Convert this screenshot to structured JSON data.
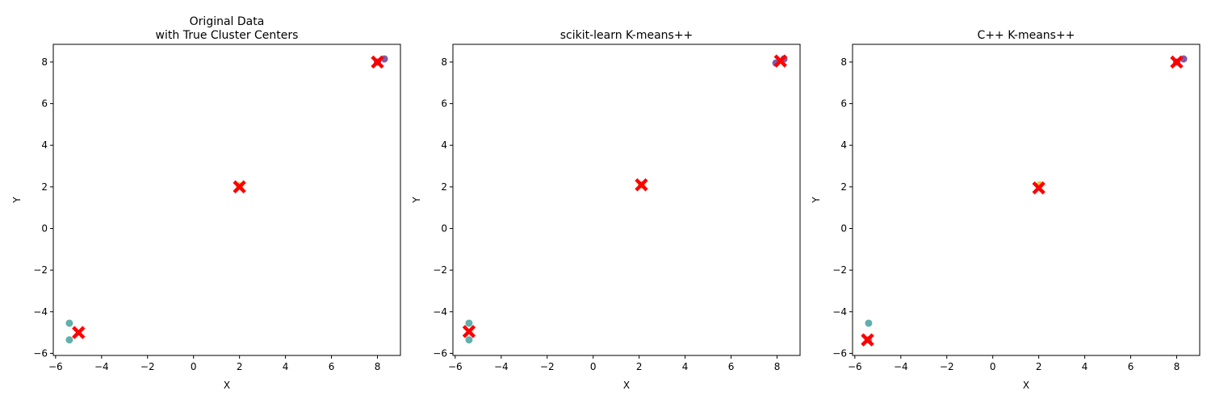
{
  "chart_data": [
    {
      "type": "scatter",
      "title_lines": [
        "Original Data",
        "with True Cluster Centers"
      ],
      "xlabel": "X",
      "ylabel": "Y",
      "xlim": [
        -6.1,
        9.0
      ],
      "ylim": [
        -6.1,
        8.85
      ],
      "xticks": [
        -6,
        -4,
        -2,
        0,
        2,
        4,
        6,
        8
      ],
      "yticks": [
        -6,
        -4,
        -2,
        0,
        2,
        4,
        6,
        8
      ],
      "xtick_labels": [
        "−6",
        "−4",
        "−2",
        "0",
        "2",
        "4",
        "6",
        "8"
      ],
      "ytick_labels": [
        "−6",
        "−4",
        "−2",
        "0",
        "2",
        "4",
        "6",
        "8"
      ],
      "points": [
        {
          "x": 8.3,
          "y": 8.15,
          "color": "#6a3d9a"
        },
        {
          "x": 8.0,
          "y": 8.0,
          "color": "#6a3d9a"
        },
        {
          "x": -5.4,
          "y": -4.55,
          "color": "#45a29e"
        },
        {
          "x": -5.4,
          "y": -5.35,
          "color": "#45a29e"
        },
        {
          "x": 2.0,
          "y": 2.05,
          "color": "#f0c000"
        }
      ],
      "centers": [
        {
          "x": 8.0,
          "y": 8.0
        },
        {
          "x": -5.0,
          "y": -5.0
        },
        {
          "x": 2.0,
          "y": 2.0
        }
      ],
      "grid": false
    },
    {
      "type": "scatter",
      "title_lines": [
        "scikit-learn K-means++"
      ],
      "xlabel": "X",
      "ylabel": "Y",
      "xlim": [
        -6.1,
        9.0
      ],
      "ylim": [
        -6.1,
        8.85
      ],
      "xticks": [
        -6,
        -4,
        -2,
        0,
        2,
        4,
        6,
        8
      ],
      "yticks": [
        -6,
        -4,
        -2,
        0,
        2,
        4,
        6,
        8
      ],
      "xtick_labels": [
        "−6",
        "−4",
        "−2",
        "0",
        "2",
        "4",
        "6",
        "8"
      ],
      "ytick_labels": [
        "−6",
        "−4",
        "−2",
        "0",
        "2",
        "4",
        "6",
        "8"
      ],
      "points": [
        {
          "x": 8.3,
          "y": 8.15,
          "color": "#6a3d9a"
        },
        {
          "x": 7.95,
          "y": 7.95,
          "color": "#6a3d9a"
        },
        {
          "x": -5.4,
          "y": -4.55,
          "color": "#45a29e"
        },
        {
          "x": -5.4,
          "y": -5.35,
          "color": "#45a29e"
        },
        {
          "x": 2.1,
          "y": 2.1,
          "color": "#f0c000"
        }
      ],
      "centers": [
        {
          "x": 8.15,
          "y": 8.05
        },
        {
          "x": -5.4,
          "y": -4.95
        },
        {
          "x": 2.1,
          "y": 2.1
        }
      ],
      "grid": false
    },
    {
      "type": "scatter",
      "title_lines": [
        "C++ K-means++"
      ],
      "xlabel": "X",
      "ylabel": "Y",
      "xlim": [
        -6.1,
        9.0
      ],
      "ylim": [
        -6.1,
        8.85
      ],
      "xticks": [
        -6,
        -4,
        -2,
        0,
        2,
        4,
        6,
        8
      ],
      "yticks": [
        -6,
        -4,
        -2,
        0,
        2,
        4,
        6,
        8
      ],
      "xtick_labels": [
        "−6",
        "−4",
        "−2",
        "0",
        "2",
        "4",
        "6",
        "8"
      ],
      "ytick_labels": [
        "−6",
        "−4",
        "−2",
        "0",
        "2",
        "4",
        "6",
        "8"
      ],
      "points": [
        {
          "x": 8.3,
          "y": 8.15,
          "color": "#6a3d9a"
        },
        {
          "x": 8.0,
          "y": 8.0,
          "color": "#6a3d9a"
        },
        {
          "x": -5.4,
          "y": -4.55,
          "color": "#45a29e"
        },
        {
          "x": -5.4,
          "y": -5.35,
          "color": "#45a29e"
        },
        {
          "x": 2.05,
          "y": 2.1,
          "color": "#f0c000"
        }
      ],
      "centers": [
        {
          "x": 8.0,
          "y": 8.0
        },
        {
          "x": -5.45,
          "y": -5.35
        },
        {
          "x": 2.0,
          "y": 1.95
        }
      ],
      "grid": false
    }
  ],
  "colors": {
    "center_marker": "#ff0000",
    "axes_frame": "#000000"
  }
}
